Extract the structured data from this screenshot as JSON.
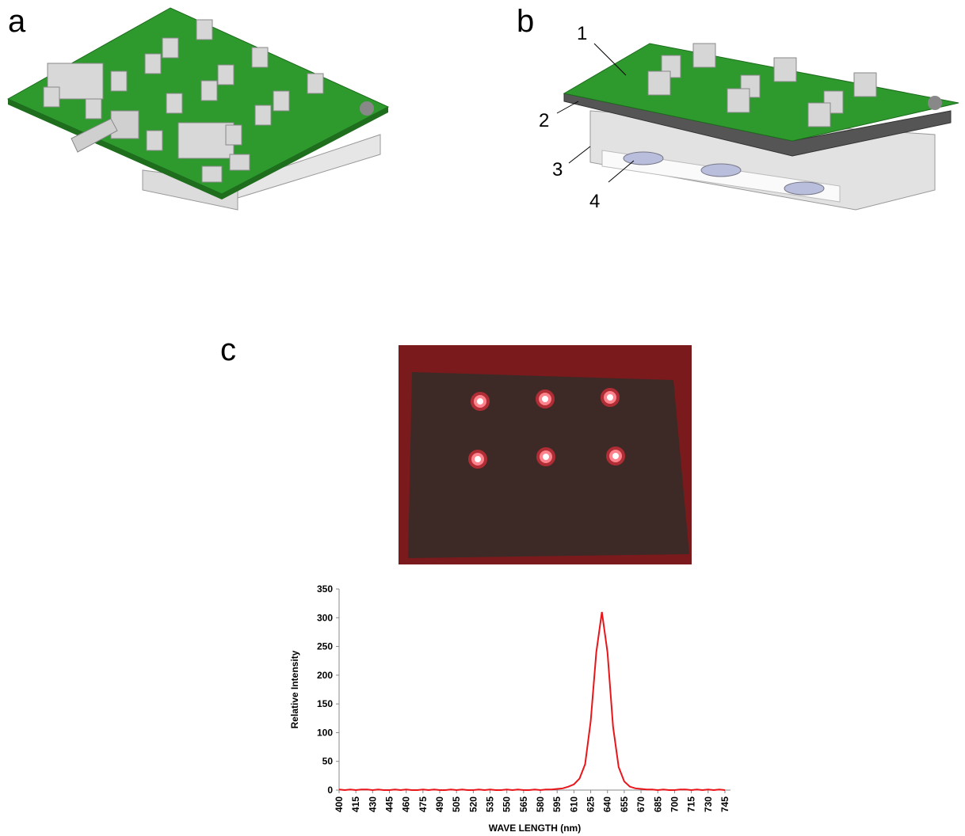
{
  "panel_labels": [
    "a",
    "b",
    "c"
  ],
  "callouts": [
    "1",
    "2",
    "3",
    "4"
  ],
  "chart_data": {
    "type": "line",
    "xlabel": "WAVE LENGTH (nm)",
    "ylabel": "Relative Intensity",
    "color": "#e8161b",
    "x": [
      400,
      405,
      410,
      415,
      420,
      425,
      430,
      435,
      440,
      445,
      450,
      455,
      460,
      465,
      470,
      475,
      480,
      485,
      490,
      495,
      500,
      505,
      510,
      515,
      520,
      525,
      530,
      535,
      540,
      545,
      550,
      555,
      560,
      565,
      570,
      575,
      580,
      585,
      590,
      595,
      600,
      605,
      610,
      615,
      620,
      625,
      630,
      635,
      640,
      645,
      650,
      655,
      660,
      665,
      670,
      675,
      680,
      685,
      690,
      695,
      700,
      705,
      710,
      715,
      720,
      725,
      730,
      735,
      740,
      745
    ],
    "values": [
      1,
      0,
      1,
      0,
      1,
      1,
      0,
      1,
      0,
      0,
      1,
      0,
      1,
      0,
      0,
      1,
      0,
      1,
      0,
      0,
      1,
      0,
      1,
      0,
      0,
      1,
      0,
      1,
      0,
      0,
      1,
      0,
      1,
      0,
      0,
      1,
      0,
      1,
      1,
      2,
      3,
      6,
      10,
      20,
      45,
      120,
      240,
      310,
      240,
      110,
      40,
      15,
      6,
      3,
      2,
      1,
      1,
      0,
      1,
      0,
      0,
      1,
      1,
      0,
      1,
      0,
      1,
      0,
      1,
      0
    ],
    "xlim": [
      400,
      750
    ],
    "ylim": [
      0,
      350
    ],
    "xticks": [
      400,
      415,
      430,
      445,
      460,
      475,
      490,
      505,
      520,
      535,
      550,
      565,
      580,
      595,
      610,
      625,
      640,
      655,
      670,
      685,
      700,
      715,
      730,
      745
    ],
    "yticks": [
      0,
      50,
      100,
      150,
      200,
      250,
      300,
      350
    ]
  }
}
